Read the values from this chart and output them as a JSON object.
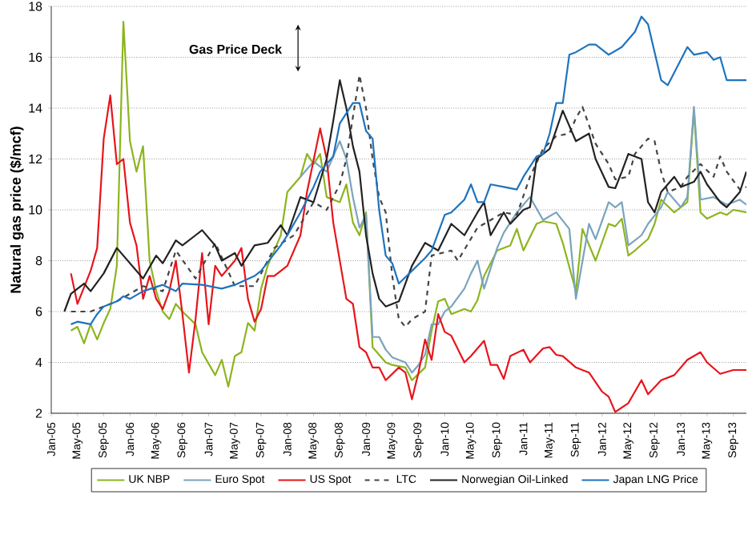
{
  "chart_data": {
    "type": "line",
    "ylabel": "Natural gas price ($/mcf)",
    "annotations": [
      "Gas Price Deck"
    ],
    "xlim": [
      "2005-01",
      "2013-11"
    ],
    "ylim": [
      2,
      18
    ],
    "yticks": [
      2,
      4,
      6,
      8,
      10,
      12,
      14,
      16,
      18
    ],
    "xticks": [
      {
        "value": "2005-01",
        "label": "Jan-05"
      },
      {
        "value": "2005-05",
        "label": "May-05"
      },
      {
        "value": "2005-09",
        "label": "Sep-05"
      },
      {
        "value": "2006-01",
        "label": "Jan-06"
      },
      {
        "value": "2006-05",
        "label": "May-06"
      },
      {
        "value": "2006-09",
        "label": "Sep-06"
      },
      {
        "value": "2007-01",
        "label": "Jan-07"
      },
      {
        "value": "2007-05",
        "label": "May-07"
      },
      {
        "value": "2007-09",
        "label": "Sep-07"
      },
      {
        "value": "2008-01",
        "label": "Jan-08"
      },
      {
        "value": "2008-05",
        "label": "May-08"
      },
      {
        "value": "2008-09",
        "label": "Sep-08"
      },
      {
        "value": "2009-01",
        "label": "Jan-09"
      },
      {
        "value": "2009-05",
        "label": "May-09"
      },
      {
        "value": "2009-09",
        "label": "Sep-09"
      },
      {
        "value": "2010-01",
        "label": "Jan-10"
      },
      {
        "value": "2010-05",
        "label": "May-10"
      },
      {
        "value": "2010-09",
        "label": "Sep-10"
      },
      {
        "value": "2011-01",
        "label": "Jan-11"
      },
      {
        "value": "2011-05",
        "label": "May-11"
      },
      {
        "value": "2011-09",
        "label": "Sep-11"
      },
      {
        "value": "2012-01",
        "label": "Jan-12"
      },
      {
        "value": "2012-05",
        "label": "May-12"
      },
      {
        "value": "2012-09",
        "label": "Sep-12"
      },
      {
        "value": "2013-01",
        "label": "Jan-13"
      },
      {
        "value": "2013-05",
        "label": "May-13"
      },
      {
        "value": "2013-09",
        "label": "Sep-13"
      }
    ],
    "grid": "y",
    "legend": "bottom",
    "marker": "none",
    "line_style": "solid",
    "series": [
      {
        "name": "UK NBP",
        "color": "#8db41e",
        "x": [
          "2005-04",
          "2005-05",
          "2005-06",
          "2005-07",
          "2005-08",
          "2005-09",
          "2005-10",
          "2005-11",
          "2005-12",
          "2006-01",
          "2006-02",
          "2006-03",
          "2006-04",
          "2006-05",
          "2006-06",
          "2006-07",
          "2006-08",
          "2006-09",
          "2006-11",
          "2006-12",
          "2007-02",
          "2007-03",
          "2007-04",
          "2007-05",
          "2007-06",
          "2007-07",
          "2007-08",
          "2007-09",
          "2007-10",
          "2007-12",
          "2008-01",
          "2008-03",
          "2008-04",
          "2008-05",
          "2008-06",
          "2008-07",
          "2008-09",
          "2008-10",
          "2008-11",
          "2008-12",
          "2009-01",
          "2009-02",
          "2009-04",
          "2009-05",
          "2009-07",
          "2009-08",
          "2009-10",
          "2009-11",
          "2009-12",
          "2010-01",
          "2010-02",
          "2010-04",
          "2010-05",
          "2010-06",
          "2010-07",
          "2010-09",
          "2010-11",
          "2010-12",
          "2011-01",
          "2011-03",
          "2011-04",
          "2011-06",
          "2011-07",
          "2011-09",
          "2011-10",
          "2011-12",
          "2012-02",
          "2012-03",
          "2012-04",
          "2012-05",
          "2012-06",
          "2012-08",
          "2012-09",
          "2012-10",
          "2012-12",
          "2013-02",
          "2013-03",
          "2013-04",
          "2013-05",
          "2013-07",
          "2013-08",
          "2013-09",
          "2013-11"
        ],
        "values": [
          5.25,
          5.4,
          4.75,
          5.5,
          4.9,
          5.55,
          6.1,
          7.8,
          17.4,
          12.7,
          11.5,
          12.5,
          8.0,
          6.8,
          6.0,
          5.7,
          6.3,
          6.0,
          5.5,
          4.4,
          3.5,
          4.1,
          3.05,
          4.25,
          4.4,
          5.55,
          5.25,
          6.9,
          7.8,
          9.0,
          10.7,
          11.3,
          12.2,
          11.8,
          12.2,
          10.5,
          10.3,
          11.0,
          9.5,
          9.0,
          9.9,
          4.6,
          4.0,
          3.9,
          3.8,
          3.3,
          3.8,
          5.25,
          6.4,
          6.5,
          5.9,
          6.1,
          6.0,
          6.45,
          7.4,
          8.4,
          8.6,
          9.25,
          8.4,
          9.45,
          9.55,
          9.45,
          8.7,
          6.8,
          9.25,
          8.0,
          9.45,
          9.35,
          9.65,
          8.2,
          8.4,
          8.85,
          9.45,
          10.4,
          9.9,
          10.3,
          13.9,
          9.9,
          9.65,
          9.9,
          9.8,
          10.0,
          9.9
        ]
      },
      {
        "name": "Euro Spot",
        "color": "#7aa3bd",
        "x": [
          "2008-03",
          "2008-05",
          "2008-07",
          "2008-09",
          "2008-10",
          "2008-11",
          "2008-12",
          "2009-01",
          "2009-02",
          "2009-03",
          "2009-04",
          "2009-05",
          "2009-07",
          "2009-08",
          "2009-09",
          "2009-10",
          "2009-11",
          "2009-12",
          "2010-01",
          "2010-02",
          "2010-04",
          "2010-05",
          "2010-06",
          "2010-07",
          "2010-09",
          "2010-10",
          "2010-12",
          "2011-02",
          "2011-04",
          "2011-06",
          "2011-08",
          "2011-09",
          "2011-11",
          "2011-12",
          "2012-02",
          "2012-03",
          "2012-04",
          "2012-05",
          "2012-07",
          "2012-08",
          "2012-10",
          "2012-11",
          "2013-01",
          "2013-02",
          "2013-03",
          "2013-04",
          "2013-06",
          "2013-08",
          "2013-10",
          "2013-11"
        ],
        "values": [
          11.3,
          11.9,
          11.5,
          12.7,
          12.0,
          10.5,
          9.3,
          9.8,
          5.0,
          5.0,
          4.5,
          4.2,
          4.0,
          3.6,
          3.9,
          4.3,
          5.5,
          5.5,
          6.0,
          6.2,
          6.9,
          7.5,
          8.0,
          6.9,
          8.5,
          9.1,
          9.9,
          10.5,
          9.6,
          9.9,
          9.25,
          6.5,
          9.45,
          8.85,
          10.3,
          10.1,
          10.3,
          8.6,
          9.0,
          9.45,
          10.1,
          10.7,
          10.1,
          10.5,
          14.05,
          10.4,
          10.5,
          10.2,
          10.4,
          10.2
        ]
      },
      {
        "name": "US Spot",
        "color": "#e8141b",
        "x": [
          "2005-04",
          "2005-05",
          "2005-07",
          "2005-08",
          "2005-09",
          "2005-10",
          "2005-11",
          "2005-12",
          "2006-01",
          "2006-02",
          "2006-03",
          "2006-04",
          "2006-05",
          "2006-06",
          "2006-07",
          "2006-08",
          "2006-09",
          "2006-10",
          "2006-11",
          "2006-12",
          "2007-01",
          "2007-02",
          "2007-03",
          "2007-04",
          "2007-05",
          "2007-06",
          "2007-07",
          "2007-08",
          "2007-09",
          "2007-10",
          "2007-11",
          "2008-01",
          "2008-03",
          "2008-04",
          "2008-06",
          "2008-07",
          "2008-08",
          "2008-09",
          "2008-10",
          "2008-11",
          "2008-12",
          "2009-01",
          "2009-02",
          "2009-03",
          "2009-04",
          "2009-06",
          "2009-07",
          "2009-08",
          "2009-09",
          "2009-10",
          "2009-11",
          "2009-12",
          "2010-01",
          "2010-02",
          "2010-04",
          "2010-05",
          "2010-07",
          "2010-08",
          "2010-09",
          "2010-10",
          "2010-11",
          "2011-01",
          "2011-02",
          "2011-04",
          "2011-05",
          "2011-06",
          "2011-07",
          "2011-09",
          "2011-11",
          "2012-01",
          "2012-02",
          "2012-03",
          "2012-05",
          "2012-07",
          "2012-08",
          "2012-10",
          "2012-12",
          "2013-02",
          "2013-04",
          "2013-05",
          "2013-07",
          "2013-09",
          "2013-11"
        ],
        "values": [
          7.5,
          6.3,
          7.6,
          8.5,
          12.8,
          14.5,
          11.8,
          12.0,
          9.5,
          8.6,
          6.5,
          7.4,
          6.5,
          6.1,
          6.8,
          8.0,
          5.9,
          3.6,
          5.7,
          8.3,
          5.5,
          7.8,
          7.4,
          7.7,
          8.0,
          8.5,
          6.5,
          5.6,
          6.1,
          7.4,
          7.4,
          7.8,
          9.0,
          10.7,
          13.2,
          12.0,
          9.5,
          8.0,
          6.5,
          6.3,
          4.6,
          4.4,
          3.8,
          3.8,
          3.3,
          3.8,
          3.6,
          2.55,
          3.6,
          4.9,
          4.1,
          5.9,
          5.2,
          5.05,
          4.0,
          4.25,
          4.85,
          3.9,
          3.9,
          3.35,
          4.25,
          4.5,
          4.0,
          4.55,
          4.6,
          4.3,
          4.25,
          3.8,
          3.6,
          2.85,
          2.65,
          2.05,
          2.4,
          3.3,
          2.75,
          3.3,
          3.5,
          4.1,
          4.4,
          4.0,
          3.55,
          3.7,
          3.7
        ]
      },
      {
        "name": "LTC",
        "color": "#444444",
        "line_style": "dashed",
        "x": [
          "2005-04",
          "2005-07",
          "2005-11",
          "2006-03",
          "2006-06",
          "2006-08",
          "2006-11",
          "2007-02",
          "2007-05",
          "2007-08",
          "2007-11",
          "2008-02",
          "2008-05",
          "2008-07",
          "2008-09",
          "2008-10",
          "2008-12",
          "2009-01",
          "2009-02",
          "2009-03",
          "2009-04",
          "2009-05",
          "2009-06",
          "2009-07",
          "2009-08",
          "2009-10",
          "2009-11",
          "2010-02",
          "2010-03",
          "2010-06",
          "2010-07",
          "2010-10",
          "2010-12",
          "2011-02",
          "2011-04",
          "2011-06",
          "2011-08",
          "2011-09",
          "2011-10",
          "2011-12",
          "2012-02",
          "2012-03",
          "2012-05",
          "2012-06",
          "2012-08",
          "2012-09",
          "2012-10",
          "2012-11",
          "2013-01",
          "2013-02",
          "2013-04",
          "2013-06",
          "2013-07",
          "2013-08",
          "2013-10",
          "2013-11"
        ],
        "values": [
          6.0,
          6.0,
          6.4,
          7.0,
          6.8,
          8.4,
          7.3,
          8.7,
          7.0,
          7.0,
          8.5,
          9.0,
          10.3,
          10.0,
          11.0,
          12.0,
          15.3,
          14.0,
          12.0,
          10.5,
          9.9,
          7.4,
          5.7,
          5.4,
          5.7,
          6.0,
          8.2,
          8.4,
          8.0,
          9.3,
          9.45,
          9.9,
          9.8,
          11.3,
          12.4,
          12.9,
          13.0,
          13.6,
          14.05,
          12.6,
          11.8,
          11.2,
          11.3,
          12.2,
          12.8,
          12.7,
          11.5,
          10.7,
          10.9,
          11.3,
          11.8,
          11.3,
          12.1,
          11.5,
          10.8,
          10.9
        ]
      },
      {
        "name": "Norwegian Oil-Linked",
        "color": "#222222",
        "x": [
          "2005-03",
          "2005-04",
          "2005-06",
          "2005-07",
          "2005-09",
          "2005-11",
          "2006-01",
          "2006-03",
          "2006-05",
          "2006-06",
          "2006-08",
          "2006-09",
          "2006-11",
          "2006-12",
          "2007-02",
          "2007-03",
          "2007-05",
          "2007-06",
          "2007-08",
          "2007-10",
          "2007-12",
          "2008-01",
          "2008-03",
          "2008-05",
          "2008-07",
          "2008-08",
          "2008-09",
          "2008-10",
          "2008-11",
          "2008-12",
          "2009-01",
          "2009-02",
          "2009-03",
          "2009-04",
          "2009-06",
          "2009-08",
          "2009-10",
          "2009-12",
          "2010-02",
          "2010-04",
          "2010-06",
          "2010-07",
          "2010-08",
          "2010-10",
          "2010-11",
          "2011-01",
          "2011-02",
          "2011-03",
          "2011-05",
          "2011-07",
          "2011-09",
          "2011-11",
          "2011-12",
          "2012-02",
          "2012-03",
          "2012-04",
          "2012-05",
          "2012-07",
          "2012-08",
          "2012-09",
          "2012-10",
          "2012-12",
          "2013-01",
          "2013-03",
          "2013-04",
          "2013-05",
          "2013-07",
          "2013-08",
          "2013-10",
          "2013-11"
        ],
        "values": [
          6.0,
          6.7,
          7.1,
          6.8,
          7.5,
          8.5,
          7.9,
          7.3,
          8.2,
          7.9,
          8.8,
          8.6,
          9.0,
          9.2,
          8.6,
          8.0,
          8.3,
          7.8,
          8.6,
          8.7,
          9.4,
          9.0,
          10.5,
          10.3,
          12.0,
          13.5,
          15.1,
          14.0,
          12.5,
          11.5,
          9.0,
          7.5,
          6.5,
          6.2,
          6.4,
          7.8,
          8.7,
          8.4,
          9.45,
          9.0,
          9.9,
          10.3,
          9.0,
          9.9,
          9.45,
          10.0,
          10.1,
          12.0,
          12.4,
          13.9,
          12.7,
          13.0,
          12.0,
          10.9,
          10.85,
          11.5,
          12.2,
          12.0,
          10.3,
          9.9,
          10.7,
          11.3,
          10.9,
          11.1,
          11.5,
          11.0,
          10.3,
          10.1,
          10.7,
          11.5
        ]
      },
      {
        "name": "Japan LNG Price",
        "color": "#1e73be",
        "x": [
          "2005-04",
          "2005-05",
          "2005-07",
          "2005-08",
          "2005-09",
          "2005-11",
          "2005-12",
          "2006-01",
          "2006-03",
          "2006-06",
          "2006-08",
          "2006-09",
          "2006-12",
          "2007-03",
          "2007-05",
          "2007-08",
          "2007-09",
          "2007-12",
          "2008-01",
          "2008-03",
          "2008-05",
          "2008-06",
          "2008-08",
          "2008-09",
          "2008-11",
          "2008-12",
          "2009-01",
          "2009-02",
          "2009-03",
          "2009-04",
          "2009-05",
          "2009-06",
          "2009-08",
          "2009-10",
          "2009-11",
          "2010-01",
          "2010-02",
          "2010-04",
          "2010-05",
          "2010-06",
          "2010-07",
          "2010-08",
          "2010-10",
          "2010-12",
          "2011-01",
          "2011-03",
          "2011-04",
          "2011-05",
          "2011-06",
          "2011-07",
          "2011-08",
          "2011-09",
          "2011-11",
          "2011-12",
          "2012-02",
          "2012-04",
          "2012-05",
          "2012-06",
          "2012-07",
          "2012-08",
          "2012-10",
          "2012-11",
          "2013-02",
          "2013-03",
          "2013-05",
          "2013-06",
          "2013-07",
          "2013-08",
          "2013-11"
        ],
        "values": [
          5.5,
          5.6,
          5.5,
          5.9,
          6.2,
          6.4,
          6.6,
          6.5,
          6.8,
          7.05,
          6.8,
          7.1,
          7.05,
          6.9,
          7.05,
          7.4,
          7.6,
          8.6,
          9.0,
          9.9,
          10.9,
          11.5,
          12.1,
          13.4,
          14.2,
          14.2,
          13.1,
          12.8,
          10.0,
          8.2,
          7.9,
          7.1,
          7.6,
          8.1,
          8.4,
          9.8,
          9.9,
          10.4,
          11.0,
          10.3,
          10.3,
          11.0,
          10.9,
          10.8,
          11.3,
          12.1,
          12.2,
          13.0,
          14.2,
          14.2,
          16.1,
          16.2,
          16.5,
          16.5,
          16.1,
          16.4,
          16.7,
          17.0,
          17.6,
          17.3,
          15.1,
          14.9,
          16.4,
          16.1,
          16.2,
          15.9,
          16.0,
          15.1,
          15.1
        ]
      }
    ]
  }
}
